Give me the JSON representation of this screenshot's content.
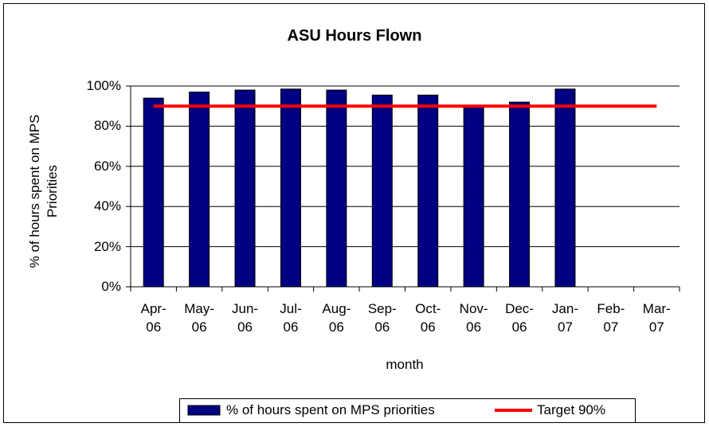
{
  "chart_data": {
    "type": "bar",
    "title": "ASU Hours Flown",
    "x_label": "month",
    "y_label": "% of hours spent on MPS Priorities",
    "categories": [
      "Apr-06",
      "May-06",
      "Jun-06",
      "Jul-06",
      "Aug-06",
      "Sep-06",
      "Oct-06",
      "Nov-06",
      "Dec-06",
      "Jan-07",
      "Feb-07",
      "Mar-07"
    ],
    "series": [
      {
        "name": "% of hours spent on MPS priorities",
        "type": "bar",
        "color": "#000080",
        "values": [
          94,
          97,
          98,
          98.5,
          98,
          95.5,
          95.5,
          90,
          92,
          98.5,
          null,
          null
        ]
      },
      {
        "name": "Target 90%",
        "type": "line",
        "color": "#ff0000",
        "values": [
          90,
          90,
          90,
          90,
          90,
          90,
          90,
          90,
          90,
          90,
          90,
          90
        ]
      }
    ],
    "ylim": [
      0,
      100
    ],
    "yticks": [
      {
        "value": 0,
        "label": "0%"
      },
      {
        "value": 20,
        "label": "20%"
      },
      {
        "value": 40,
        "label": "40%"
      },
      {
        "value": 60,
        "label": "60%"
      },
      {
        "value": 80,
        "label": "80%"
      },
      {
        "value": 100,
        "label": "100%"
      }
    ],
    "grid": true,
    "legend": "bottom"
  }
}
